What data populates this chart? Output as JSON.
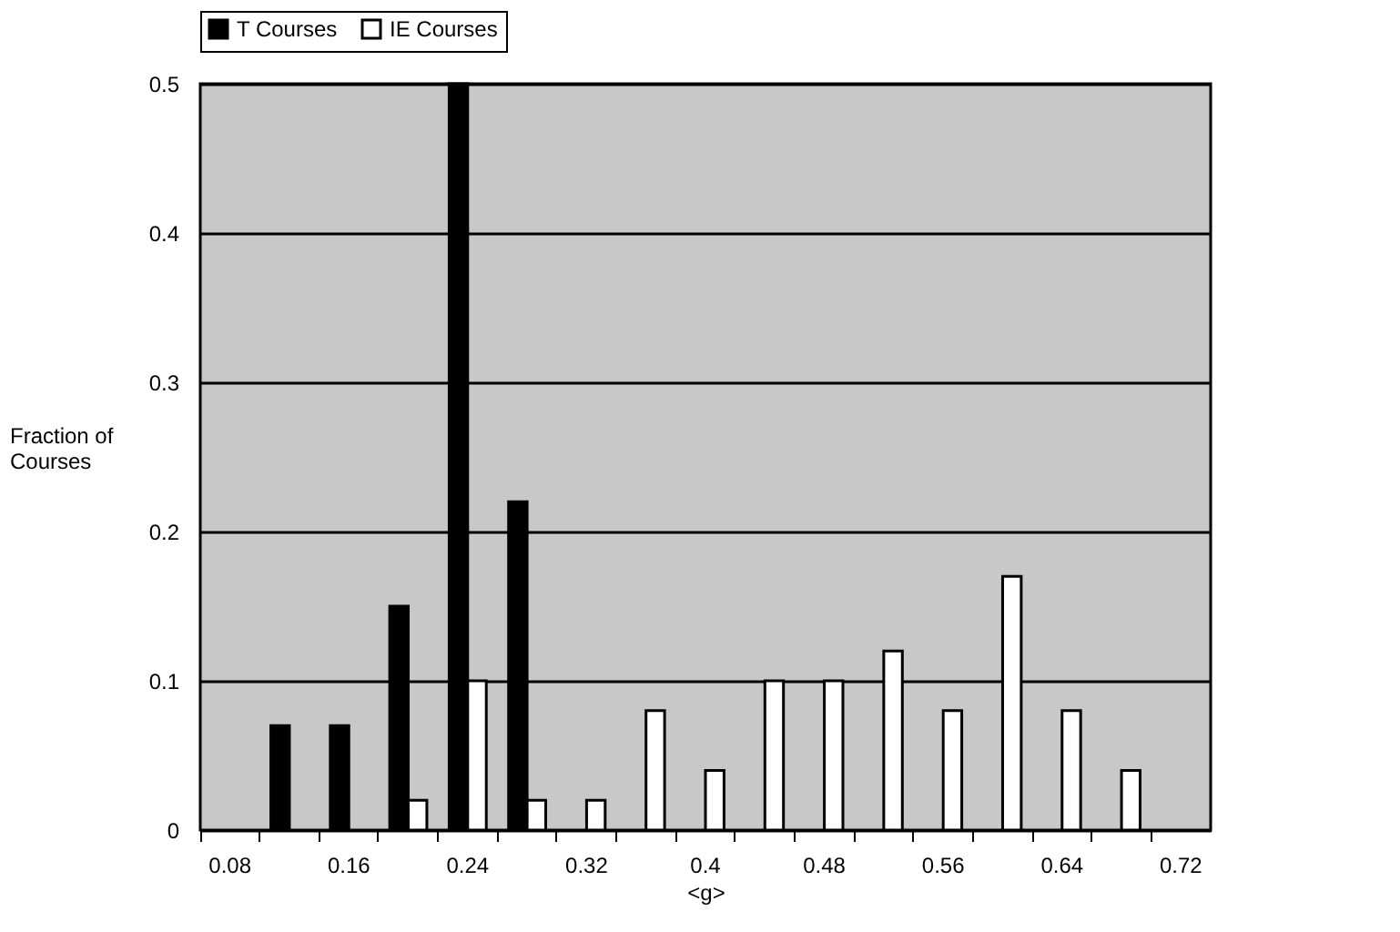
{
  "chart_data": {
    "type": "bar",
    "xlabel": "<g>",
    "ylabel": "Fraction of Courses",
    "categories": [
      "0.08",
      null,
      "0.16",
      null,
      "0.24",
      null,
      "0.32",
      null,
      "0.4",
      null,
      "0.48",
      null,
      "0.56",
      null,
      "0.64",
      null,
      "0.72"
    ],
    "series": [
      {
        "name": "T Courses",
        "color": "#000000",
        "values": [
          0,
          0.07,
          0.07,
          0.15,
          0.5,
          0.22,
          0,
          0,
          0,
          0,
          0,
          0,
          0,
          0,
          0,
          0,
          0
        ]
      },
      {
        "name": "IE Courses",
        "color": "#ffffff",
        "values": [
          0,
          0,
          0,
          0.02,
          0.1,
          0.02,
          0.02,
          0.08,
          0.04,
          0.1,
          0.1,
          0.12,
          0.08,
          0.17,
          0.08,
          0.04,
          0
        ]
      }
    ],
    "ylim": [
      0,
      0.5
    ],
    "yticks": [
      0,
      0.1,
      0.2,
      0.3,
      0.4,
      0.5
    ],
    "grid": "y",
    "legend": "top"
  }
}
